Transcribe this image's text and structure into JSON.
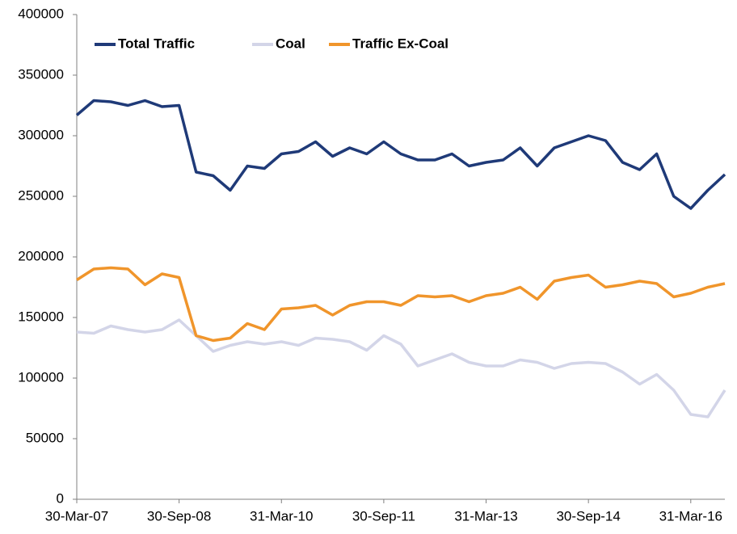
{
  "chart_data": {
    "type": "line",
    "categories": [
      "30-Mar-07",
      null,
      null,
      null,
      null,
      null,
      "30-Sep-08",
      null,
      null,
      null,
      null,
      null,
      "31-Mar-10",
      null,
      null,
      null,
      null,
      null,
      "30-Sep-11",
      null,
      null,
      null,
      null,
      null,
      "31-Mar-13",
      null,
      null,
      null,
      null,
      null,
      "30-Sep-14",
      null,
      null,
      null,
      null,
      null,
      "31-Mar-16",
      null,
      null
    ],
    "series": [
      {
        "name": "Total Traffic",
        "color": "#1f3a78",
        "values": [
          317000,
          329000,
          328000,
          325000,
          329000,
          324000,
          325000,
          270000,
          267000,
          255000,
          275000,
          273000,
          285000,
          287000,
          295000,
          283000,
          290000,
          285000,
          295000,
          285000,
          280000,
          280000,
          285000,
          275000,
          278000,
          280000,
          290000,
          275000,
          290000,
          295000,
          300000,
          296000,
          278000,
          272000,
          285000,
          250000,
          240000,
          255000,
          268000
        ]
      },
      {
        "name": "Coal",
        "color": "#d3d5e8",
        "values": [
          138000,
          137000,
          143000,
          140000,
          138000,
          140000,
          148000,
          135000,
          122000,
          127000,
          130000,
          128000,
          130000,
          127000,
          133000,
          132000,
          130000,
          123000,
          135000,
          128000,
          110000,
          115000,
          120000,
          113000,
          110000,
          110000,
          115000,
          113000,
          108000,
          112000,
          113000,
          112000,
          105000,
          95000,
          103000,
          90000,
          70000,
          68000,
          90000
        ]
      },
      {
        "name": "Traffic Ex-Coal",
        "color": "#f0952b",
        "values": [
          181000,
          190000,
          191000,
          190000,
          177000,
          186000,
          183000,
          135000,
          131000,
          133000,
          145000,
          140000,
          157000,
          158000,
          160000,
          152000,
          160000,
          163000,
          163000,
          160000,
          168000,
          167000,
          168000,
          163000,
          168000,
          170000,
          175000,
          165000,
          180000,
          183000,
          185000,
          175000,
          177000,
          180000,
          178000,
          167000,
          170000,
          175000,
          178000
        ]
      }
    ],
    "ylim": [
      0,
      400000
    ],
    "yticks": [
      0,
      50000,
      100000,
      150000,
      200000,
      250000,
      300000,
      350000,
      400000
    ],
    "grid": false,
    "legend": "top-left"
  }
}
